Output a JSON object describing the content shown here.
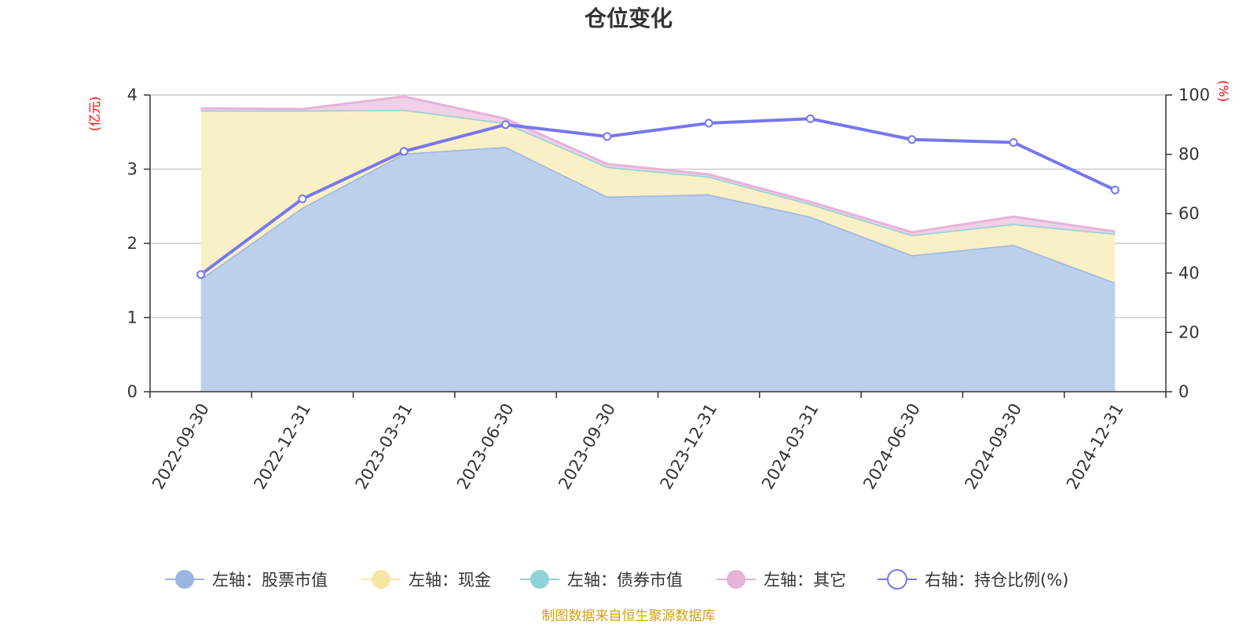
{
  "chart_data": {
    "type": "area",
    "title": "仓位变化",
    "categories": [
      "2022-09-30",
      "2022-12-31",
      "2023-03-31",
      "2023-06-30",
      "2023-09-30",
      "2023-12-31",
      "2024-03-31",
      "2024-06-30",
      "2024-09-30",
      "2024-12-31"
    ],
    "left_axis": {
      "label": "(亿元)",
      "range": [
        0,
        4
      ],
      "ticks": [
        0,
        1,
        2,
        3,
        4
      ]
    },
    "right_axis": {
      "label": "(%)",
      "range": [
        0,
        100
      ],
      "ticks": [
        0,
        20,
        40,
        60,
        80,
        100
      ]
    },
    "series": [
      {
        "name": "左轴：股票市值",
        "axis": "left",
        "kind": "stacked-area",
        "color": "#9ab6e0",
        "fill": "#b8cdeb",
        "values": [
          1.52,
          2.48,
          3.21,
          3.3,
          2.63,
          2.66,
          2.36,
          1.84,
          1.98,
          1.47
        ]
      },
      {
        "name": "左轴：现金",
        "axis": "left",
        "kind": "stacked-area",
        "color": "#f7e6a3",
        "fill": "#faefc3",
        "values": [
          2.27,
          1.31,
          0.59,
          0.32,
          0.4,
          0.24,
          0.17,
          0.27,
          0.28,
          0.66
        ]
      },
      {
        "name": "左轴：债券市值",
        "axis": "left",
        "kind": "stacked-area",
        "color": "#8fd3d6",
        "fill": "#b5e3e5",
        "values": [
          0,
          0,
          0,
          0,
          0,
          0,
          0,
          0,
          0,
          0
        ]
      },
      {
        "name": "左轴：其它",
        "axis": "left",
        "kind": "stacked-area",
        "color": "#e6b3d9",
        "fill": "#efcfe7",
        "values": [
          0.03,
          0.02,
          0.18,
          0.06,
          0.04,
          0.03,
          0.03,
          0.04,
          0.1,
          0.03
        ]
      },
      {
        "name": "右轴：持仓比例(%)",
        "axis": "right",
        "kind": "line",
        "color": "#7777ee",
        "values": [
          39.5,
          65,
          81,
          90,
          86,
          90.5,
          92,
          85,
          84,
          68
        ]
      }
    ],
    "grid": true,
    "legend_position": "bottom"
  },
  "source_text": "制图数据来自恒生聚源数据库"
}
